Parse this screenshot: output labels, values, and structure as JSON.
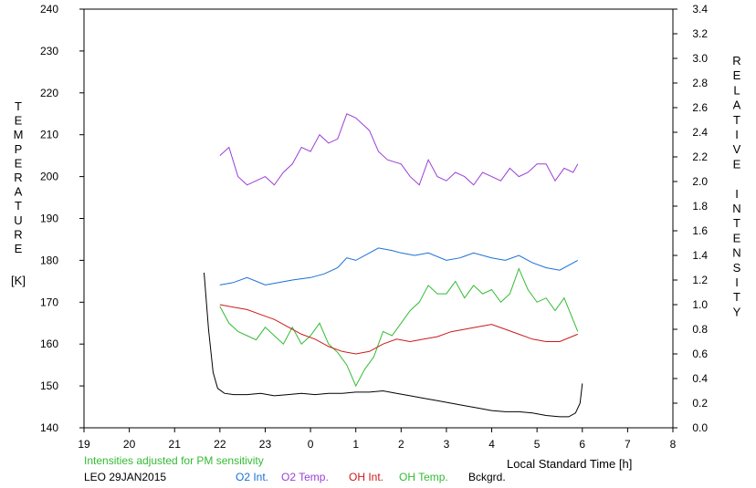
{
  "chart_data": {
    "type": "line",
    "title": "",
    "xlabel": "Local Standard Time [h]",
    "ylabel_left": "TEMPERATURE [K]",
    "ylabel_left_letters": [
      "T",
      "E",
      "M",
      "P",
      "E",
      "R",
      "A",
      "T",
      "U",
      "R",
      "E"
    ],
    "ylabel_left_unit": "[K]",
    "ylabel_right": "RELATIVE INTENSITY",
    "ylabel_right_words": [
      [
        "R",
        "E",
        "L",
        "A",
        "T",
        "I",
        "V",
        "E"
      ],
      [
        "I",
        "N",
        "T",
        "E",
        "N",
        "S",
        "I",
        "T",
        "Y"
      ]
    ],
    "x_tick_labels": [
      "19",
      "20",
      "21",
      "22",
      "23",
      "0",
      "1",
      "2",
      "3",
      "4",
      "5",
      "6",
      "7",
      "8"
    ],
    "xlim": [
      19,
      32
    ],
    "ylim_left": [
      140,
      240
    ],
    "ylim_right": [
      0.0,
      3.4
    ],
    "y_left_ticks": [
      140,
      150,
      160,
      170,
      180,
      190,
      200,
      210,
      220,
      230,
      240
    ],
    "y_right_ticks": [
      "0.0",
      "0.2",
      "0.4",
      "0.6",
      "0.8",
      "1.0",
      "1.2",
      "1.4",
      "1.6",
      "1.8",
      "2.0",
      "2.2",
      "2.4",
      "2.6",
      "2.8",
      "3.0",
      "3.2",
      "3.4"
    ],
    "grid": false,
    "legend_position": "bottom",
    "note": "Intensities adjusted for PM sensitivity",
    "station": "LEO 29JAN2015",
    "series": [
      {
        "name": "O2 Int.",
        "axis": "right",
        "color": "#1a6fd6",
        "points": [
          [
            22.0,
            1.16
          ],
          [
            22.3,
            1.18
          ],
          [
            22.6,
            1.22
          ],
          [
            23.0,
            1.16
          ],
          [
            23.3,
            1.18
          ],
          [
            23.6,
            1.2
          ],
          [
            24.0,
            1.22
          ],
          [
            24.3,
            1.25
          ],
          [
            24.6,
            1.3
          ],
          [
            24.8,
            1.38
          ],
          [
            25.0,
            1.36
          ],
          [
            25.3,
            1.42
          ],
          [
            25.5,
            1.46
          ],
          [
            25.8,
            1.44
          ],
          [
            26.0,
            1.42
          ],
          [
            26.3,
            1.4
          ],
          [
            26.6,
            1.42
          ],
          [
            27.0,
            1.36
          ],
          [
            27.3,
            1.38
          ],
          [
            27.6,
            1.42
          ],
          [
            28.0,
            1.38
          ],
          [
            28.3,
            1.36
          ],
          [
            28.6,
            1.4
          ],
          [
            28.9,
            1.34
          ],
          [
            29.2,
            1.3
          ],
          [
            29.5,
            1.28
          ],
          [
            29.9,
            1.36
          ]
        ]
      },
      {
        "name": "O2 Temp.",
        "axis": "left",
        "color": "#9a3fd6",
        "points": [
          [
            22.0,
            205
          ],
          [
            22.2,
            207
          ],
          [
            22.4,
            200
          ],
          [
            22.6,
            198
          ],
          [
            22.8,
            199
          ],
          [
            23.0,
            200
          ],
          [
            23.2,
            198
          ],
          [
            23.4,
            201
          ],
          [
            23.6,
            203
          ],
          [
            23.8,
            207
          ],
          [
            24.0,
            206
          ],
          [
            24.2,
            210
          ],
          [
            24.4,
            208
          ],
          [
            24.6,
            209
          ],
          [
            24.8,
            215
          ],
          [
            25.0,
            214
          ],
          [
            25.3,
            211
          ],
          [
            25.5,
            206
          ],
          [
            25.7,
            204
          ],
          [
            26.0,
            203
          ],
          [
            26.2,
            200
          ],
          [
            26.4,
            198
          ],
          [
            26.6,
            204
          ],
          [
            26.8,
            200
          ],
          [
            27.0,
            199
          ],
          [
            27.2,
            201
          ],
          [
            27.4,
            200
          ],
          [
            27.6,
            198
          ],
          [
            27.8,
            201
          ],
          [
            28.0,
            200
          ],
          [
            28.2,
            199
          ],
          [
            28.4,
            202
          ],
          [
            28.6,
            200
          ],
          [
            28.8,
            201
          ],
          [
            29.0,
            203
          ],
          [
            29.2,
            203
          ],
          [
            29.4,
            199
          ],
          [
            29.6,
            202
          ],
          [
            29.8,
            201
          ],
          [
            29.9,
            203
          ]
        ]
      },
      {
        "name": "OH Int.",
        "axis": "right",
        "color": "#cc1a1a",
        "points": [
          [
            22.0,
            1.0
          ],
          [
            22.3,
            0.98
          ],
          [
            22.6,
            0.96
          ],
          [
            22.9,
            0.92
          ],
          [
            23.2,
            0.88
          ],
          [
            23.5,
            0.82
          ],
          [
            23.8,
            0.76
          ],
          [
            24.1,
            0.72
          ],
          [
            24.4,
            0.66
          ],
          [
            24.7,
            0.62
          ],
          [
            25.0,
            0.6
          ],
          [
            25.3,
            0.62
          ],
          [
            25.6,
            0.68
          ],
          [
            25.9,
            0.72
          ],
          [
            26.2,
            0.7
          ],
          [
            26.5,
            0.72
          ],
          [
            26.8,
            0.74
          ],
          [
            27.1,
            0.78
          ],
          [
            27.4,
            0.8
          ],
          [
            27.7,
            0.82
          ],
          [
            28.0,
            0.84
          ],
          [
            28.3,
            0.8
          ],
          [
            28.6,
            0.76
          ],
          [
            28.9,
            0.72
          ],
          [
            29.2,
            0.7
          ],
          [
            29.5,
            0.7
          ],
          [
            29.9,
            0.76
          ]
        ]
      },
      {
        "name": "OH Temp.",
        "axis": "left",
        "color": "#33bb33",
        "points": [
          [
            22.0,
            169
          ],
          [
            22.2,
            165
          ],
          [
            22.4,
            163
          ],
          [
            22.6,
            162
          ],
          [
            22.8,
            161
          ],
          [
            23.0,
            164
          ],
          [
            23.2,
            162
          ],
          [
            23.4,
            160
          ],
          [
            23.6,
            164
          ],
          [
            23.8,
            160
          ],
          [
            24.0,
            162
          ],
          [
            24.2,
            165
          ],
          [
            24.4,
            160
          ],
          [
            24.6,
            158
          ],
          [
            24.8,
            155
          ],
          [
            25.0,
            150
          ],
          [
            25.2,
            154
          ],
          [
            25.4,
            157
          ],
          [
            25.6,
            163
          ],
          [
            25.8,
            162
          ],
          [
            26.0,
            165
          ],
          [
            26.2,
            168
          ],
          [
            26.4,
            170
          ],
          [
            26.6,
            174
          ],
          [
            26.8,
            172
          ],
          [
            27.0,
            172
          ],
          [
            27.2,
            175
          ],
          [
            27.4,
            171
          ],
          [
            27.6,
            174
          ],
          [
            27.8,
            172
          ],
          [
            28.0,
            173
          ],
          [
            28.2,
            170
          ],
          [
            28.4,
            172
          ],
          [
            28.6,
            178
          ],
          [
            28.8,
            173
          ],
          [
            29.0,
            170
          ],
          [
            29.2,
            171
          ],
          [
            29.4,
            168
          ],
          [
            29.6,
            171
          ],
          [
            29.9,
            163
          ]
        ]
      },
      {
        "name": "Bckgrd.",
        "axis": "right",
        "color": "#000000",
        "points": [
          [
            21.65,
            1.26
          ],
          [
            21.75,
            0.8
          ],
          [
            21.85,
            0.45
          ],
          [
            21.95,
            0.32
          ],
          [
            22.1,
            0.28
          ],
          [
            22.3,
            0.27
          ],
          [
            22.6,
            0.27
          ],
          [
            22.9,
            0.28
          ],
          [
            23.2,
            0.26
          ],
          [
            23.5,
            0.27
          ],
          [
            23.8,
            0.28
          ],
          [
            24.1,
            0.27
          ],
          [
            24.4,
            0.28
          ],
          [
            24.7,
            0.28
          ],
          [
            25.0,
            0.29
          ],
          [
            25.3,
            0.29
          ],
          [
            25.6,
            0.3
          ],
          [
            25.9,
            0.28
          ],
          [
            26.2,
            0.26
          ],
          [
            26.5,
            0.24
          ],
          [
            26.8,
            0.22
          ],
          [
            27.1,
            0.2
          ],
          [
            27.4,
            0.18
          ],
          [
            27.7,
            0.16
          ],
          [
            28.0,
            0.14
          ],
          [
            28.3,
            0.13
          ],
          [
            28.6,
            0.13
          ],
          [
            28.9,
            0.12
          ],
          [
            29.2,
            0.1
          ],
          [
            29.5,
            0.09
          ],
          [
            29.7,
            0.09
          ],
          [
            29.85,
            0.12
          ],
          [
            29.95,
            0.2
          ],
          [
            30.0,
            0.36
          ]
        ]
      }
    ]
  }
}
